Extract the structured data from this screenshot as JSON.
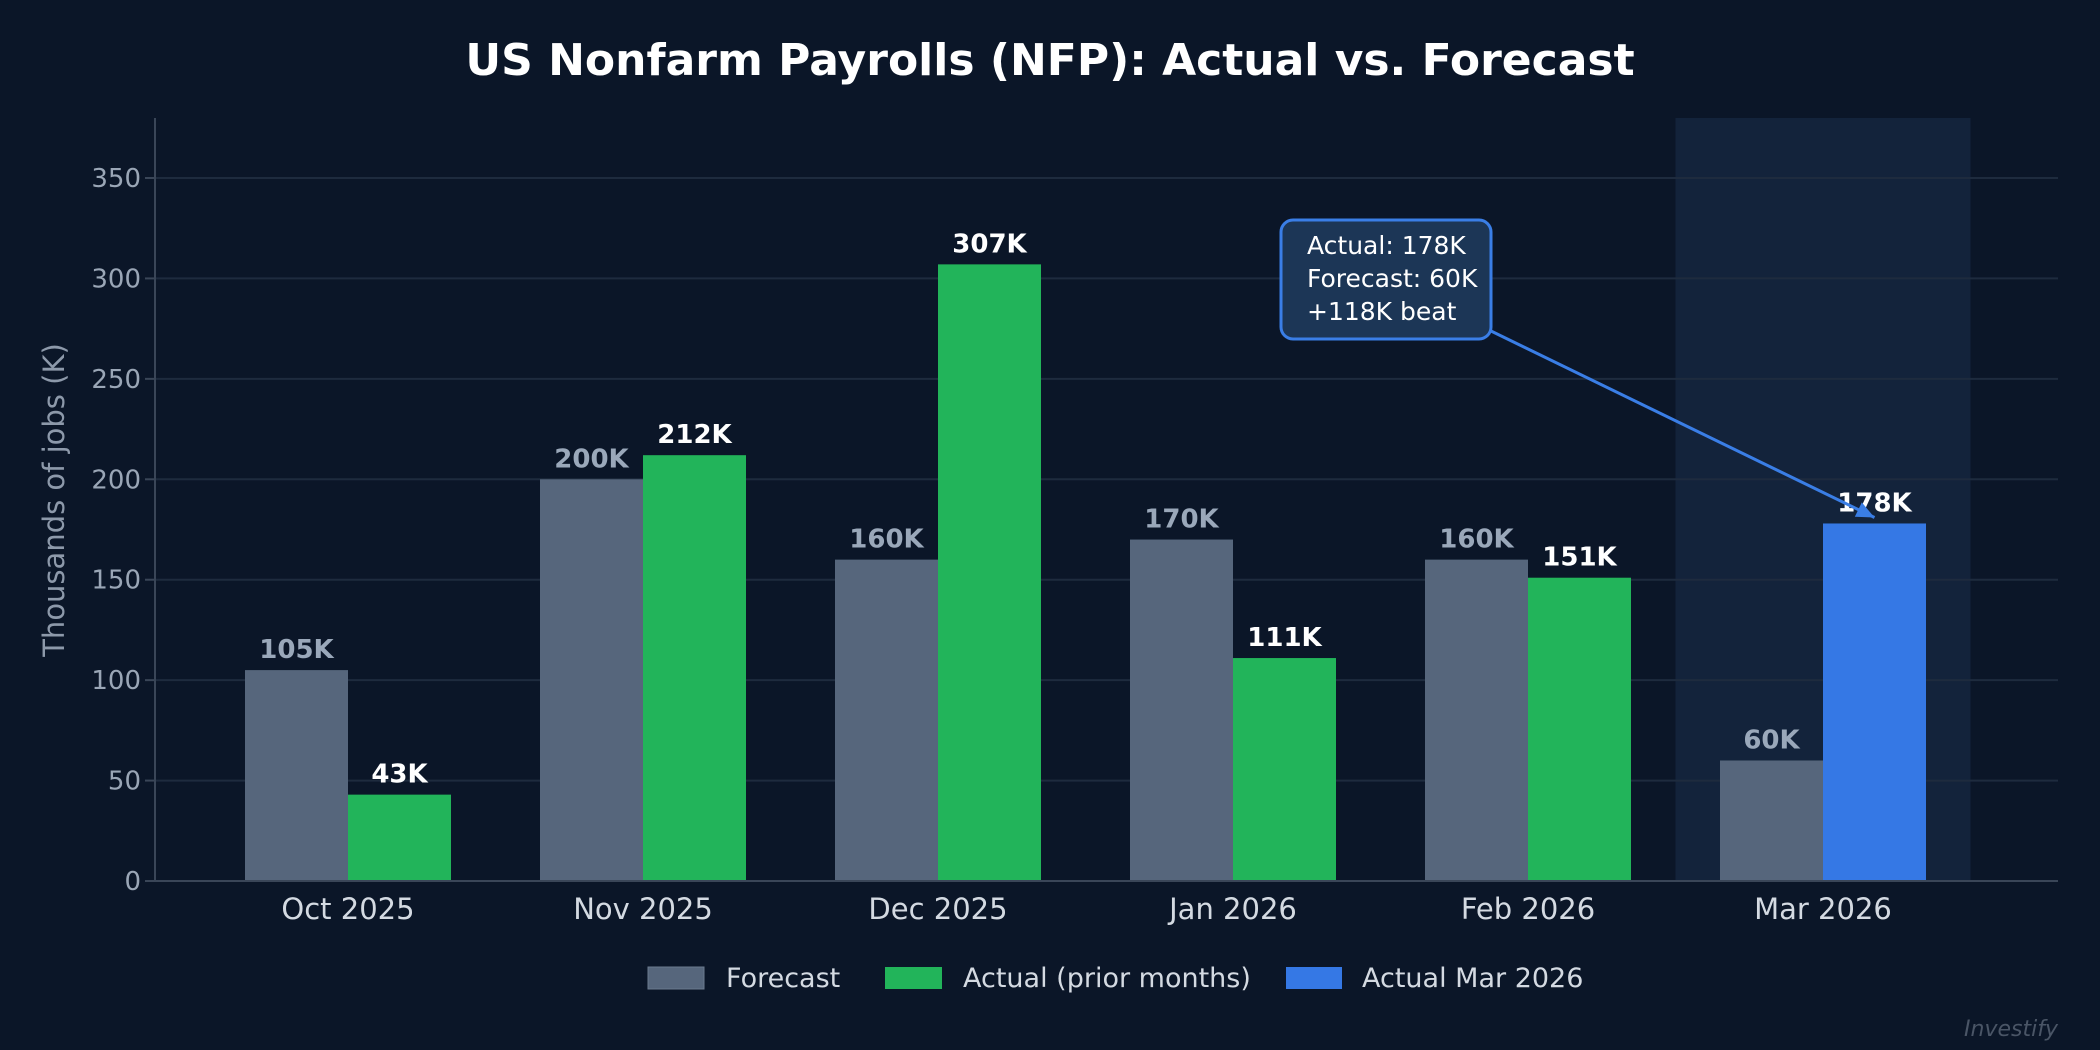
{
  "chart_data": {
    "type": "bar",
    "title": "US Nonfarm Payrolls (NFP): Actual vs. Forecast",
    "xlabel": "",
    "ylabel": "Thousands of jobs (K)",
    "ylim": [
      0,
      380
    ],
    "yticks": [
      0,
      50,
      100,
      150,
      200,
      250,
      300,
      350
    ],
    "grid": true,
    "categories": [
      "Oct 2025",
      "Nov 2025",
      "Dec 2025",
      "Jan 2026",
      "Feb 2026",
      "Mar 2026"
    ],
    "series": [
      {
        "name": "Forecast",
        "values": [
          105,
          200,
          160,
          170,
          160,
          60
        ],
        "labels": [
          "105K",
          "200K",
          "160K",
          "170K",
          "160K",
          "60K"
        ],
        "color": "#56667c"
      },
      {
        "name": "Actual",
        "values": [
          43,
          212,
          307,
          111,
          151,
          178
        ],
        "labels": [
          "43K",
          "212K",
          "307K",
          "111K",
          "151K",
          "178K"
        ],
        "color": "#22b45a",
        "highlight_color": "#3578e5"
      }
    ],
    "highlighted_category": "Mar 2026",
    "legend": {
      "placement": "bottom",
      "entries": [
        {
          "label": "Forecast",
          "color": "#56667c"
        },
        {
          "label": "Actual (prior months)",
          "color": "#22b45a"
        },
        {
          "label": "Actual Mar 2026",
          "color": "#3578e5"
        }
      ]
    },
    "annotation": {
      "lines": [
        "Actual: 178K",
        "Forecast: 60K",
        "+118K beat"
      ],
      "target_category": "Mar 2026"
    },
    "watermark": "Investify"
  }
}
